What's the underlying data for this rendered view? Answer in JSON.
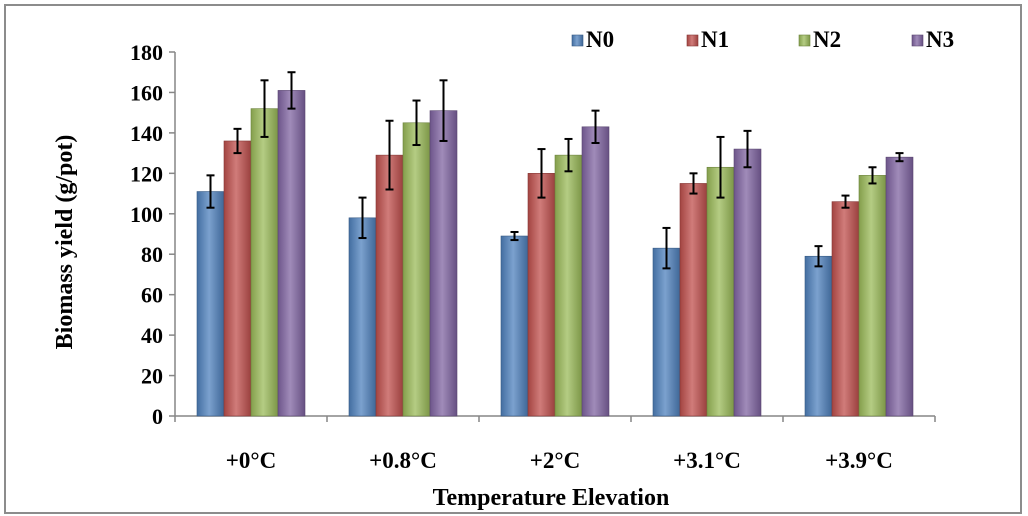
{
  "chart_data": {
    "type": "bar",
    "title": "",
    "xlabel": "Temperature Elevation",
    "ylabel": "Biomass yield (g/pot)",
    "ylim": [
      0,
      180
    ],
    "yticks": [
      "0",
      "20",
      "40",
      "60",
      "80",
      "100",
      "120",
      "140",
      "160",
      "180"
    ],
    "grid": false,
    "legend_position": "top-right",
    "categories": [
      "+0°C",
      "+0.8°C",
      "+2°C",
      "+3.1°C",
      "+3.9°C"
    ],
    "series": [
      {
        "name": "N0",
        "color": "#4f81bd",
        "values": [
          111,
          98,
          89,
          83,
          79
        ],
        "errors": [
          8,
          10,
          2,
          10,
          5
        ]
      },
      {
        "name": "N1",
        "color": "#c0504d",
        "values": [
          136,
          129,
          120,
          115,
          106
        ],
        "errors": [
          6,
          17,
          12,
          5,
          3
        ]
      },
      {
        "name": "N2",
        "color": "#9bbb59",
        "values": [
          152,
          145,
          129,
          123,
          119
        ],
        "errors": [
          14,
          11,
          8,
          15,
          4
        ]
      },
      {
        "name": "N3",
        "color": "#8064a2",
        "values": [
          161,
          151,
          143,
          132,
          128
        ],
        "errors": [
          9,
          15,
          8,
          9,
          2
        ]
      }
    ]
  }
}
